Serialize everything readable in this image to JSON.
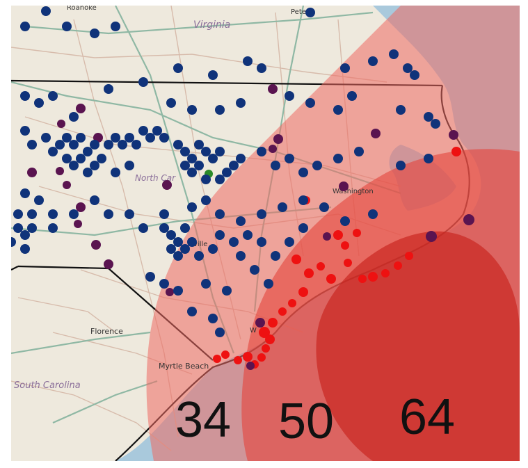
{
  "map": {
    "colors": {
      "land": "#eee9dd",
      "ocean": "#a9c9dc",
      "road_major": "#8fb8a4",
      "road_minor": "#d5b7a6",
      "border": "#111111",
      "zone_34": "#ef6a62",
      "zone_50": "#e4443c",
      "zone_64": "#c8221c",
      "outage_high": "#ee1111",
      "outage_mid": "#5a1450",
      "outage_low": "#10337a",
      "outage_special": "#2a8a2a"
    },
    "labels": {
      "virginia": "Virginia",
      "north_carolina": "North Car",
      "south_carolina": "South Carolina",
      "florence": "Florence",
      "myrtle_beach": "Myrtle Beach",
      "roanoke": "Roanoke",
      "petersburg": "Peters",
      "washington": "Washington",
      "wilmington": "W",
      "fayetteville": "ville"
    },
    "wind_zones": [
      {
        "id": "34",
        "label": "34"
      },
      {
        "id": "50",
        "label": "50"
      },
      {
        "id": "64",
        "label": "64"
      }
    ]
  }
}
